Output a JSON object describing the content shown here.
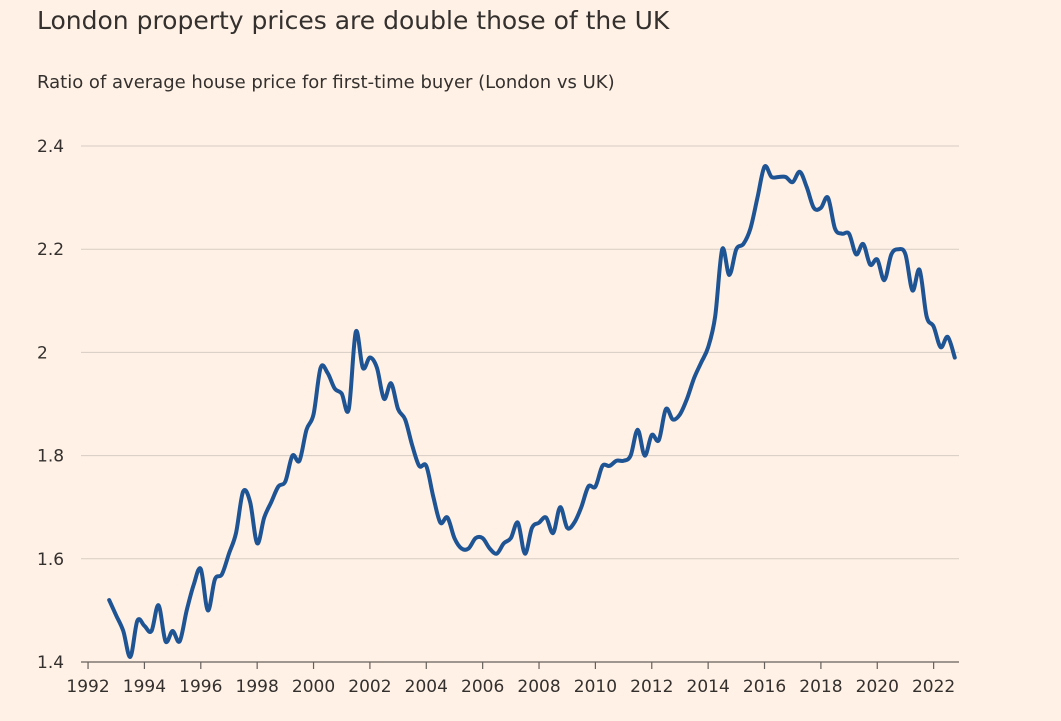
{
  "chart_data": {
    "type": "line",
    "title": "London property prices are double those of the UK",
    "subtitle": "Ratio of average house price for first-time buyer (London vs UK)",
    "xlabel": "",
    "ylabel": "",
    "xlim": [
      1991.75,
      2022.9
    ],
    "ylim": [
      1.4,
      2.4
    ],
    "grid": true,
    "x_ticks": [
      1992,
      1994,
      1996,
      1998,
      2000,
      2002,
      2004,
      2006,
      2008,
      2010,
      2012,
      2014,
      2016,
      2018,
      2020,
      2022
    ],
    "y_ticks": [
      1.4,
      1.6,
      1.8,
      2.0,
      2.2,
      2.4
    ],
    "y_tick_labels": [
      "1.4",
      "1.6",
      "1.8",
      "2",
      "2.2",
      "2.4"
    ],
    "colors": {
      "series": "#1f5494"
    },
    "series": [
      {
        "x": [
          1992.75,
          1993.0,
          1993.25,
          1993.5,
          1993.75,
          1994.0,
          1994.25,
          1994.5,
          1994.75,
          1995.0,
          1995.25,
          1995.5,
          1995.75,
          1996.0,
          1996.25,
          1996.5,
          1996.75,
          1997.0,
          1997.25,
          1997.5,
          1997.75,
          1998.0,
          1998.25,
          1998.5,
          1998.75,
          1999.0,
          1999.25,
          1999.5,
          1999.75,
          2000.0,
          2000.25,
          2000.5,
          2000.75,
          2001.0,
          2001.25,
          2001.5,
          2001.75,
          2002.0,
          2002.25,
          2002.5,
          2002.75,
          2003.0,
          2003.25,
          2003.5,
          2003.75,
          2004.0,
          2004.25,
          2004.5,
          2004.75,
          2005.0,
          2005.25,
          2005.5,
          2005.75,
          2006.0,
          2006.25,
          2006.5,
          2006.75,
          2007.0,
          2007.25,
          2007.5,
          2007.75,
          2008.0,
          2008.25,
          2008.5,
          2008.75,
          2009.0,
          2009.25,
          2009.5,
          2009.75,
          2010.0,
          2010.25,
          2010.5,
          2010.75,
          2011.0,
          2011.25,
          2011.5,
          2011.75,
          2012.0,
          2012.25,
          2012.5,
          2012.75,
          2013.0,
          2013.25,
          2013.5,
          2013.75,
          2014.0,
          2014.25,
          2014.5,
          2014.75,
          2015.0,
          2015.25,
          2015.5,
          2015.75,
          2016.0,
          2016.25,
          2016.5,
          2016.75,
          2017.0,
          2017.25,
          2017.5,
          2017.75,
          2018.0,
          2018.25,
          2018.5,
          2018.75,
          2019.0,
          2019.25,
          2019.5,
          2019.75,
          2020.0,
          2020.25,
          2020.5,
          2020.75,
          2021.0,
          2021.25,
          2021.5,
          2021.75,
          2022.0,
          2022.25,
          2022.5,
          2022.75
        ],
        "values": [
          1.52,
          1.49,
          1.46,
          1.41,
          1.48,
          1.47,
          1.46,
          1.51,
          1.44,
          1.46,
          1.44,
          1.5,
          1.55,
          1.58,
          1.5,
          1.56,
          1.57,
          1.61,
          1.65,
          1.73,
          1.71,
          1.63,
          1.68,
          1.71,
          1.74,
          1.75,
          1.8,
          1.79,
          1.85,
          1.88,
          1.97,
          1.96,
          1.93,
          1.92,
          1.89,
          2.04,
          1.97,
          1.99,
          1.97,
          1.91,
          1.94,
          1.89,
          1.87,
          1.82,
          1.78,
          1.78,
          1.72,
          1.67,
          1.68,
          1.64,
          1.62,
          1.62,
          1.64,
          1.64,
          1.62,
          1.61,
          1.63,
          1.64,
          1.67,
          1.61,
          1.66,
          1.67,
          1.68,
          1.65,
          1.7,
          1.66,
          1.67,
          1.7,
          1.74,
          1.74,
          1.78,
          1.78,
          1.79,
          1.79,
          1.8,
          1.85,
          1.8,
          1.84,
          1.83,
          1.89,
          1.87,
          1.88,
          1.91,
          1.95,
          1.98,
          2.01,
          2.07,
          2.2,
          2.15,
          2.2,
          2.21,
          2.24,
          2.3,
          2.36,
          2.34,
          2.34,
          2.34,
          2.33,
          2.35,
          2.32,
          2.28,
          2.28,
          2.3,
          2.24,
          2.23,
          2.23,
          2.19,
          2.21,
          2.17,
          2.18,
          2.14,
          2.19,
          2.2,
          2.19,
          2.12,
          2.16,
          2.07,
          2.05,
          2.01,
          2.03,
          1.99
        ]
      }
    ]
  }
}
